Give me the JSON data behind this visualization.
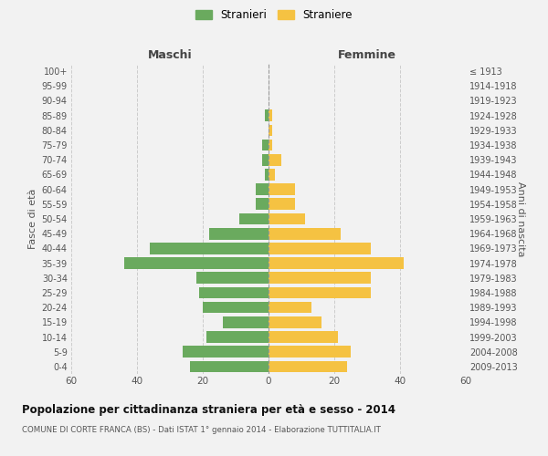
{
  "age_groups": [
    "0-4",
    "5-9",
    "10-14",
    "15-19",
    "20-24",
    "25-29",
    "30-34",
    "35-39",
    "40-44",
    "45-49",
    "50-54",
    "55-59",
    "60-64",
    "65-69",
    "70-74",
    "75-79",
    "80-84",
    "85-89",
    "90-94",
    "95-99",
    "100+"
  ],
  "birth_years": [
    "2009-2013",
    "2004-2008",
    "1999-2003",
    "1994-1998",
    "1989-1993",
    "1984-1988",
    "1979-1983",
    "1974-1978",
    "1969-1973",
    "1964-1968",
    "1959-1963",
    "1954-1958",
    "1949-1953",
    "1944-1948",
    "1939-1943",
    "1934-1938",
    "1929-1933",
    "1924-1928",
    "1919-1923",
    "1914-1918",
    "≤ 1913"
  ],
  "maschi": [
    24,
    26,
    19,
    14,
    20,
    21,
    22,
    44,
    36,
    18,
    9,
    4,
    4,
    1,
    2,
    2,
    0,
    1,
    0,
    0,
    0
  ],
  "femmine": [
    24,
    25,
    21,
    16,
    13,
    31,
    31,
    41,
    31,
    22,
    11,
    8,
    8,
    2,
    4,
    1,
    1,
    1,
    0,
    0,
    0
  ],
  "color_maschi": "#6aaa5e",
  "color_femmine": "#f5c242",
  "background_color": "#f2f2f2",
  "grid_color": "#cccccc",
  "title": "Popolazione per cittadinanza straniera per età e sesso - 2014",
  "subtitle": "COMUNE DI CORTE FRANCA (BS) - Dati ISTAT 1° gennaio 2014 - Elaborazione TUTTITALIA.IT",
  "xlabel_left": "Maschi",
  "xlabel_right": "Femmine",
  "ylabel_left": "Fasce di età",
  "ylabel_right": "Anni di nascita",
  "legend_maschi": "Stranieri",
  "legend_femmine": "Straniere",
  "xlim": 60,
  "dpi": 100,
  "figsize": [
    6.0,
    5.0
  ]
}
